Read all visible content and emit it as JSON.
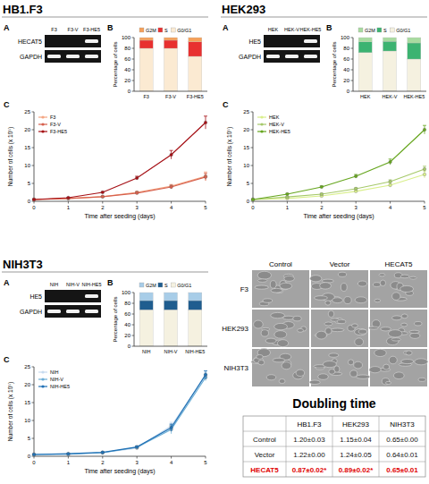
{
  "sections": [
    {
      "title": "HB1.F3",
      "gel": {
        "panel": "A",
        "lanes": [
          "F3",
          "F3-V",
          "F3-HE5"
        ],
        "rows": [
          {
            "label": "HECAT5",
            "present": [
              false,
              false,
              true
            ]
          },
          {
            "label": "GAPDH",
            "present": [
              true,
              true,
              true
            ]
          }
        ]
      }
    },
    {
      "title": "HEK293",
      "gel": {
        "panel": "A",
        "lanes": [
          "HEK",
          "HEK-V",
          "HEK-HE5"
        ],
        "rows": [
          {
            "label": "HE5",
            "present": [
              false,
              false,
              true
            ]
          },
          {
            "label": "GAPDH",
            "present": [
              true,
              true,
              true
            ]
          }
        ]
      }
    },
    {
      "title": "NIH3T3",
      "gel": {
        "panel": "A",
        "lanes": [
          "NIH",
          "NIH-V",
          "NIH-HE5"
        ],
        "rows": [
          {
            "label": "HE5",
            "present": [
              false,
              false,
              true
            ]
          },
          {
            "label": "GAPDH",
            "present": [
              true,
              true,
              true
            ]
          }
        ]
      }
    }
  ],
  "chart_data": [
    {
      "type": "bar",
      "stacked": true,
      "title": "B",
      "ylabel": "Percentage of cells",
      "categories": [
        "F3",
        "F3-V",
        "F3-HE5"
      ],
      "ylim": [
        0,
        100
      ],
      "yticks": [
        0,
        20,
        40,
        60,
        80,
        100
      ],
      "legend": "top",
      "series": [
        {
          "name": "G0/G1",
          "color": "#fbead2",
          "values": [
            80,
            80,
            65
          ]
        },
        {
          "name": "S",
          "color": "#e83030",
          "values": [
            15,
            15,
            27
          ]
        },
        {
          "name": "G2M",
          "color": "#f5a05a",
          "values": [
            5,
            5,
            8
          ]
        }
      ]
    },
    {
      "type": "line",
      "title": "C",
      "xlabel": "Time after seeding (days)",
      "ylabel": "Number of cells (x 10⁵)",
      "x": [
        0,
        1,
        2,
        3,
        4,
        5
      ],
      "xlim": [
        0,
        5
      ],
      "xticks": [
        0,
        1,
        2,
        3,
        4,
        5
      ],
      "ylim": [
        0,
        25
      ],
      "yticks": [
        0,
        5,
        10,
        15,
        20,
        25
      ],
      "legend": "top-left",
      "series": [
        {
          "name": "F3",
          "color": "#f4a582",
          "marker": "circle",
          "values": [
            0.5,
            0.8,
            1.3,
            2.5,
            4.2,
            7.0
          ],
          "errors": [
            0,
            0.1,
            0.1,
            0.3,
            0.5,
            1.2
          ]
        },
        {
          "name": "F3-V",
          "color": "#d6604d",
          "marker": "circle",
          "values": [
            0.5,
            0.8,
            1.3,
            2.3,
            4.0,
            6.8
          ],
          "errors": [
            0,
            0.1,
            0.1,
            0.3,
            0.5,
            1.0
          ]
        },
        {
          "name": "F3-HE5",
          "color": "#a50f15",
          "marker": "circle",
          "values": [
            0.5,
            1.0,
            2.5,
            6.5,
            13,
            22
          ],
          "errors": [
            0,
            0.1,
            0.2,
            0.5,
            1.2,
            1.8
          ]
        }
      ]
    },
    {
      "type": "bar",
      "stacked": true,
      "title": "B",
      "ylabel": "Percentage of cells",
      "categories": [
        "HEK",
        "HEK-V",
        "HEK-HE5"
      ],
      "ylim": [
        0,
        100
      ],
      "yticks": [
        0,
        20,
        40,
        60,
        80,
        100
      ],
      "legend": "top",
      "series": [
        {
          "name": "G0/G1",
          "color": "#f5f1e0",
          "values": [
            72,
            75,
            60
          ]
        },
        {
          "name": "S",
          "color": "#3cb371",
          "values": [
            20,
            18,
            30
          ]
        },
        {
          "name": "G2M",
          "color": "#a8dba0",
          "values": [
            8,
            7,
            10
          ]
        }
      ]
    },
    {
      "type": "line",
      "title": "C",
      "xlabel": "Time after seeding (days)",
      "ylabel": "Number of cells (x 10⁵)",
      "x": [
        0,
        1,
        2,
        3,
        4,
        5
      ],
      "xlim": [
        0,
        5
      ],
      "xticks": [
        0,
        1,
        2,
        3,
        4,
        5
      ],
      "ylim": [
        0,
        25
      ],
      "yticks": [
        0,
        5,
        10,
        15,
        20,
        25
      ],
      "legend": "top-left",
      "series": [
        {
          "name": "HEK",
          "color": "#d9ef8b",
          "marker": "circle",
          "values": [
            0.5,
            0.8,
            1.5,
            2.8,
            4.5,
            7.5
          ],
          "errors": [
            0,
            0.1,
            0.2,
            0.3,
            0.5,
            1.0
          ]
        },
        {
          "name": "HEK-V",
          "color": "#a6c96a",
          "marker": "circle",
          "values": [
            0.5,
            1.2,
            2.0,
            3.5,
            5.5,
            9.0
          ],
          "errors": [
            0,
            0.1,
            0.2,
            0.3,
            0.5,
            0.8
          ]
        },
        {
          "name": "HEK-HE5",
          "color": "#66a61e",
          "marker": "circle",
          "values": [
            0.5,
            2.0,
            4.0,
            7.0,
            11,
            20
          ],
          "errors": [
            0,
            0.2,
            0.3,
            0.5,
            0.8,
            1.2
          ]
        }
      ]
    },
    {
      "type": "bar",
      "stacked": true,
      "title": "B",
      "ylabel": "Percentage of cells",
      "categories": [
        "NIH",
        "NIH-V",
        "NIH-HE5"
      ],
      "ylim": [
        0,
        100
      ],
      "yticks": [
        0,
        20,
        40,
        60,
        80,
        100
      ],
      "legend": "top",
      "series": [
        {
          "name": "G0/G1",
          "color": "#f5f1e0",
          "values": [
            68,
            68,
            68
          ]
        },
        {
          "name": "S",
          "color": "#1f5d8f",
          "values": [
            17,
            17,
            17
          ]
        },
        {
          "name": "G2M",
          "color": "#a8cde8",
          "values": [
            15,
            15,
            15
          ]
        }
      ]
    },
    {
      "type": "line",
      "title": "C",
      "xlabel": "Time after seeding (days)",
      "ylabel": "Number of cells (x 10⁵)",
      "x": [
        0,
        1,
        2,
        3,
        4,
        5
      ],
      "xlim": [
        0,
        5
      ],
      "xticks": [
        0,
        1,
        2,
        3,
        4,
        5
      ],
      "ylim": [
        0,
        25
      ],
      "yticks": [
        0,
        5,
        10,
        15,
        20,
        25
      ],
      "legend": "top-left",
      "series": [
        {
          "name": "NIH",
          "color": "#c6dbef",
          "marker": "circle",
          "values": [
            0.5,
            0.6,
            1.0,
            2.3,
            8.5,
            22.5
          ],
          "errors": [
            0,
            0.1,
            0.1,
            0.3,
            1.0,
            1.0
          ]
        },
        {
          "name": "NIH-V",
          "color": "#6baed6",
          "marker": "circle",
          "values": [
            0.5,
            0.6,
            1.0,
            2.5,
            7.5,
            22.0
          ],
          "errors": [
            0,
            0.1,
            0.1,
            0.3,
            1.2,
            0.9
          ]
        },
        {
          "name": "NIH-HE5",
          "color": "#2171b5",
          "marker": "circle",
          "values": [
            0.5,
            0.7,
            1.1,
            2.6,
            8.0,
            22.8
          ],
          "errors": [
            0,
            0.1,
            0.1,
            0.3,
            1.0,
            1.1
          ]
        }
      ]
    }
  ],
  "micrographs": {
    "columns": [
      "Control",
      "Vector",
      "HECAT5"
    ],
    "rows": [
      "F3",
      "HEK293",
      "NIH3T3"
    ]
  },
  "doubling_time": {
    "title": "Doubling time",
    "header": [
      "HB1.F3",
      "HEK293",
      "NIH3T3"
    ],
    "rows": [
      {
        "label": "Control",
        "cells": [
          "1.20±0.03",
          "1.15±0.04",
          "0.65±0.00"
        ]
      },
      {
        "label": "Vector",
        "cells": [
          "1.22±0.00",
          "1.24±0.05",
          "0.64±0.01"
        ]
      },
      {
        "label": "HECAT5",
        "cells": [
          "0.87±0.02*",
          "0.89±0.02*",
          "0.65±0.01"
        ]
      }
    ]
  }
}
